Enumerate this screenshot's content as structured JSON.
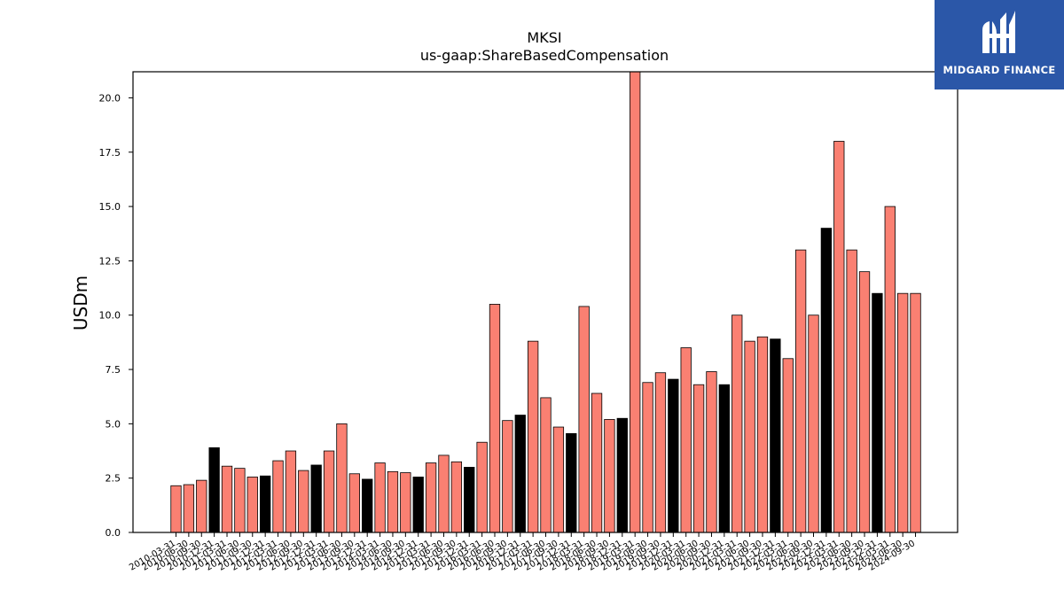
{
  "brand": {
    "name": "MIDGARD FINANCE",
    "color": "#2b57a8"
  },
  "chart_data": {
    "type": "bar",
    "title": "MKSI",
    "subtitle": "us-gaap:ShareBasedCompensation",
    "xlabel": "",
    "ylabel": "USDm",
    "ylim": [
      0,
      21.2
    ],
    "yticks": [
      "0.0",
      "2.5",
      "5.0",
      "7.5",
      "10.0",
      "12.5",
      "15.0",
      "17.5",
      "20.0"
    ],
    "grid": false,
    "colors": {
      "quarter": "#fa8072",
      "annual": "#000000"
    },
    "categories": [
      "2010-03-31",
      "2010-06-30",
      "2010-09-30",
      "2010-12-31",
      "2011-03-31",
      "2011-06-30",
      "2011-09-30",
      "2011-12-31",
      "2012-03-31",
      "2012-06-30",
      "2012-09-30",
      "2012-12-31",
      "2013-03-31",
      "2013-06-30",
      "2013-09-30",
      "2013-12-31",
      "2014-03-31",
      "2014-06-30",
      "2014-09-30",
      "2014-12-31",
      "2015-03-31",
      "2015-06-30",
      "2015-09-30",
      "2015-12-31",
      "2016-03-31",
      "2016-06-30",
      "2016-09-30",
      "2016-12-31",
      "2017-03-31",
      "2017-06-30",
      "2017-09-30",
      "2017-12-31",
      "2018-03-31",
      "2018-06-30",
      "2018-09-30",
      "2018-12-31",
      "2019-03-31",
      "2019-06-30",
      "2019-09-30",
      "2019-12-31",
      "2020-03-31",
      "2020-06-30",
      "2020-09-30",
      "2020-12-31",
      "2021-03-31",
      "2021-06-30",
      "2021-09-30",
      "2021-12-31",
      "2022-03-31",
      "2022-06-30",
      "2022-09-30",
      "2022-12-31",
      "2023-03-31",
      "2023-06-30",
      "2023-09-30",
      "2023-12-31",
      "2024-03-31",
      "2024-06-30",
      "2024-09-30"
    ],
    "values": [
      2.15,
      2.2,
      2.4,
      3.9,
      3.05,
      2.95,
      2.55,
      2.6,
      3.3,
      3.75,
      2.85,
      3.1,
      3.75,
      5.0,
      2.7,
      2.45,
      3.2,
      2.8,
      2.75,
      2.55,
      3.2,
      3.55,
      3.25,
      3.0,
      4.15,
      10.5,
      5.15,
      5.4,
      8.8,
      6.2,
      4.85,
      4.55,
      10.4,
      6.4,
      5.2,
      5.25,
      21.3,
      6.9,
      7.35,
      7.05,
      8.5,
      6.8,
      7.4,
      6.8,
      10.0,
      8.8,
      9.0,
      8.9,
      8.0,
      13.0,
      10.0,
      14.0,
      18.0,
      13.0,
      12.0,
      11.0,
      15.0,
      11.0,
      11.0
    ],
    "annual": [
      false,
      false,
      false,
      true,
      false,
      false,
      false,
      true,
      false,
      false,
      false,
      true,
      false,
      false,
      false,
      true,
      false,
      false,
      false,
      true,
      false,
      false,
      false,
      true,
      false,
      false,
      false,
      true,
      false,
      false,
      false,
      true,
      false,
      false,
      false,
      true,
      false,
      false,
      false,
      true,
      false,
      false,
      false,
      true,
      false,
      false,
      false,
      true,
      false,
      false,
      false,
      true,
      false,
      false,
      false,
      true,
      false,
      false,
      false
    ]
  }
}
